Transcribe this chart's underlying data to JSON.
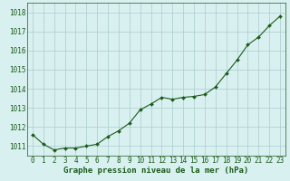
{
  "x": [
    0,
    1,
    2,
    3,
    4,
    5,
    6,
    7,
    8,
    9,
    10,
    11,
    12,
    13,
    14,
    15,
    16,
    17,
    18,
    19,
    20,
    21,
    22,
    23
  ],
  "y": [
    1011.6,
    1011.1,
    1010.8,
    1010.9,
    1010.9,
    1011.0,
    1011.1,
    1011.5,
    1011.8,
    1012.2,
    1012.9,
    1013.2,
    1013.55,
    1013.45,
    1013.55,
    1013.6,
    1013.7,
    1014.1,
    1014.8,
    1015.5,
    1016.3,
    1016.7,
    1017.3,
    1017.8
  ],
  "line_color": "#1a5c1a",
  "marker": "D",
  "marker_size": 2.0,
  "bg_color": "#d9f0f0",
  "grid_color": "#aacccc",
  "xlabel": "Graphe pression niveau de la mer (hPa)",
  "xlabel_color": "#1a5c1a",
  "xlabel_fontsize": 6.5,
  "tick_color": "#1a5c1a",
  "tick_fontsize": 5.5,
  "ylim": [
    1010.5,
    1018.5
  ],
  "yticks": [
    1011,
    1012,
    1013,
    1014,
    1015,
    1016,
    1017,
    1018
  ],
  "xlim": [
    -0.5,
    23.5
  ],
  "xticks": [
    0,
    1,
    2,
    3,
    4,
    5,
    6,
    7,
    8,
    9,
    10,
    11,
    12,
    13,
    14,
    15,
    16,
    17,
    18,
    19,
    20,
    21,
    22,
    23
  ]
}
